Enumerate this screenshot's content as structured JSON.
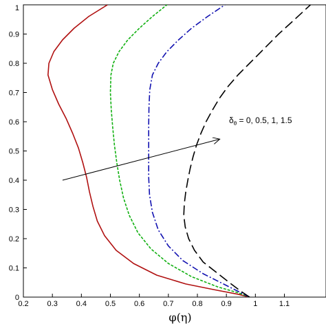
{
  "chart_data": {
    "type": "line",
    "xlabel": "φ(η)",
    "ylabel": "",
    "xlim": [
      0.2,
      1.2
    ],
    "ylim": [
      0,
      1
    ],
    "x_ticks": [
      "0.2",
      "0.3",
      "0.4",
      "0.5",
      "0.6",
      "0.7",
      "0.8",
      "0.9",
      "1",
      "1.1"
    ],
    "y_ticks": [
      "0",
      "0.1",
      "0.2",
      "0.3",
      "0.4",
      "0.5",
      "0.6",
      "0.7",
      "0.8",
      "0.9",
      "1"
    ],
    "grid": false,
    "legend": "none",
    "annotation": {
      "symbol": "δ",
      "subscript": "θ",
      "text": " = 0, 0.5, 1, 1.5",
      "arrow_from": [
        0.335,
        0.4
      ],
      "arrow_to": [
        0.875,
        0.54
      ]
    },
    "series": [
      {
        "color": "#b01010",
        "dash": "solid",
        "points": [
          [
            0.98,
            0
          ],
          [
            0.94,
            0.01
          ],
          [
            0.86,
            0.025
          ],
          [
            0.76,
            0.045
          ],
          [
            0.66,
            0.075
          ],
          [
            0.58,
            0.115
          ],
          [
            0.52,
            0.16
          ],
          [
            0.48,
            0.21
          ],
          [
            0.455,
            0.26
          ],
          [
            0.44,
            0.31
          ],
          [
            0.428,
            0.36
          ],
          [
            0.418,
            0.41
          ],
          [
            0.405,
            0.46
          ],
          [
            0.39,
            0.51
          ],
          [
            0.37,
            0.56
          ],
          [
            0.348,
            0.61
          ],
          [
            0.322,
            0.66
          ],
          [
            0.3,
            0.71
          ],
          [
            0.285,
            0.76
          ],
          [
            0.288,
            0.8
          ],
          [
            0.305,
            0.84
          ],
          [
            0.335,
            0.88
          ],
          [
            0.375,
            0.92
          ],
          [
            0.425,
            0.96
          ],
          [
            0.49,
            1.0
          ]
        ]
      },
      {
        "color": "#10b010",
        "dash": "short-dash",
        "points": [
          [
            0.98,
            0
          ],
          [
            0.94,
            0.015
          ],
          [
            0.87,
            0.035
          ],
          [
            0.78,
            0.07
          ],
          [
            0.7,
            0.115
          ],
          [
            0.64,
            0.165
          ],
          [
            0.595,
            0.22
          ],
          [
            0.565,
            0.28
          ],
          [
            0.545,
            0.34
          ],
          [
            0.532,
            0.4
          ],
          [
            0.522,
            0.46
          ],
          [
            0.514,
            0.52
          ],
          [
            0.508,
            0.58
          ],
          [
            0.503,
            0.64
          ],
          [
            0.5,
            0.7
          ],
          [
            0.502,
            0.76
          ],
          [
            0.51,
            0.8
          ],
          [
            0.53,
            0.84
          ],
          [
            0.56,
            0.88
          ],
          [
            0.6,
            0.92
          ],
          [
            0.645,
            0.96
          ],
          [
            0.695,
            1.0
          ]
        ]
      },
      {
        "color": "#1010b0",
        "dash": "dash-dot",
        "points": [
          [
            0.98,
            0
          ],
          [
            0.94,
            0.02
          ],
          [
            0.89,
            0.045
          ],
          [
            0.82,
            0.08
          ],
          [
            0.75,
            0.125
          ],
          [
            0.7,
            0.175
          ],
          [
            0.665,
            0.23
          ],
          [
            0.645,
            0.29
          ],
          [
            0.635,
            0.35
          ],
          [
            0.632,
            0.41
          ],
          [
            0.632,
            0.47
          ],
          [
            0.632,
            0.53
          ],
          [
            0.632,
            0.59
          ],
          [
            0.633,
            0.65
          ],
          [
            0.636,
            0.71
          ],
          [
            0.645,
            0.76
          ],
          [
            0.665,
            0.8
          ],
          [
            0.695,
            0.84
          ],
          [
            0.735,
            0.88
          ],
          [
            0.78,
            0.92
          ],
          [
            0.835,
            0.96
          ],
          [
            0.895,
            1.0
          ]
        ]
      },
      {
        "color": "#000000",
        "dash": "long-dash",
        "points": [
          [
            0.98,
            0
          ],
          [
            0.95,
            0.02
          ],
          [
            0.91,
            0.05
          ],
          [
            0.865,
            0.085
          ],
          [
            0.82,
            0.12
          ],
          [
            0.79,
            0.16
          ],
          [
            0.77,
            0.2
          ],
          [
            0.758,
            0.24
          ],
          [
            0.753,
            0.28
          ],
          [
            0.755,
            0.32
          ],
          [
            0.76,
            0.36
          ],
          [
            0.767,
            0.4
          ],
          [
            0.775,
            0.44
          ],
          [
            0.785,
            0.48
          ],
          [
            0.797,
            0.52
          ],
          [
            0.812,
            0.56
          ],
          [
            0.83,
            0.6
          ],
          [
            0.852,
            0.64
          ],
          [
            0.876,
            0.68
          ],
          [
            0.905,
            0.72
          ],
          [
            0.94,
            0.76
          ],
          [
            0.98,
            0.8
          ],
          [
            1.03,
            0.85
          ],
          [
            1.08,
            0.9
          ],
          [
            1.13,
            0.945
          ],
          [
            1.19,
            1.0
          ]
        ]
      }
    ]
  }
}
